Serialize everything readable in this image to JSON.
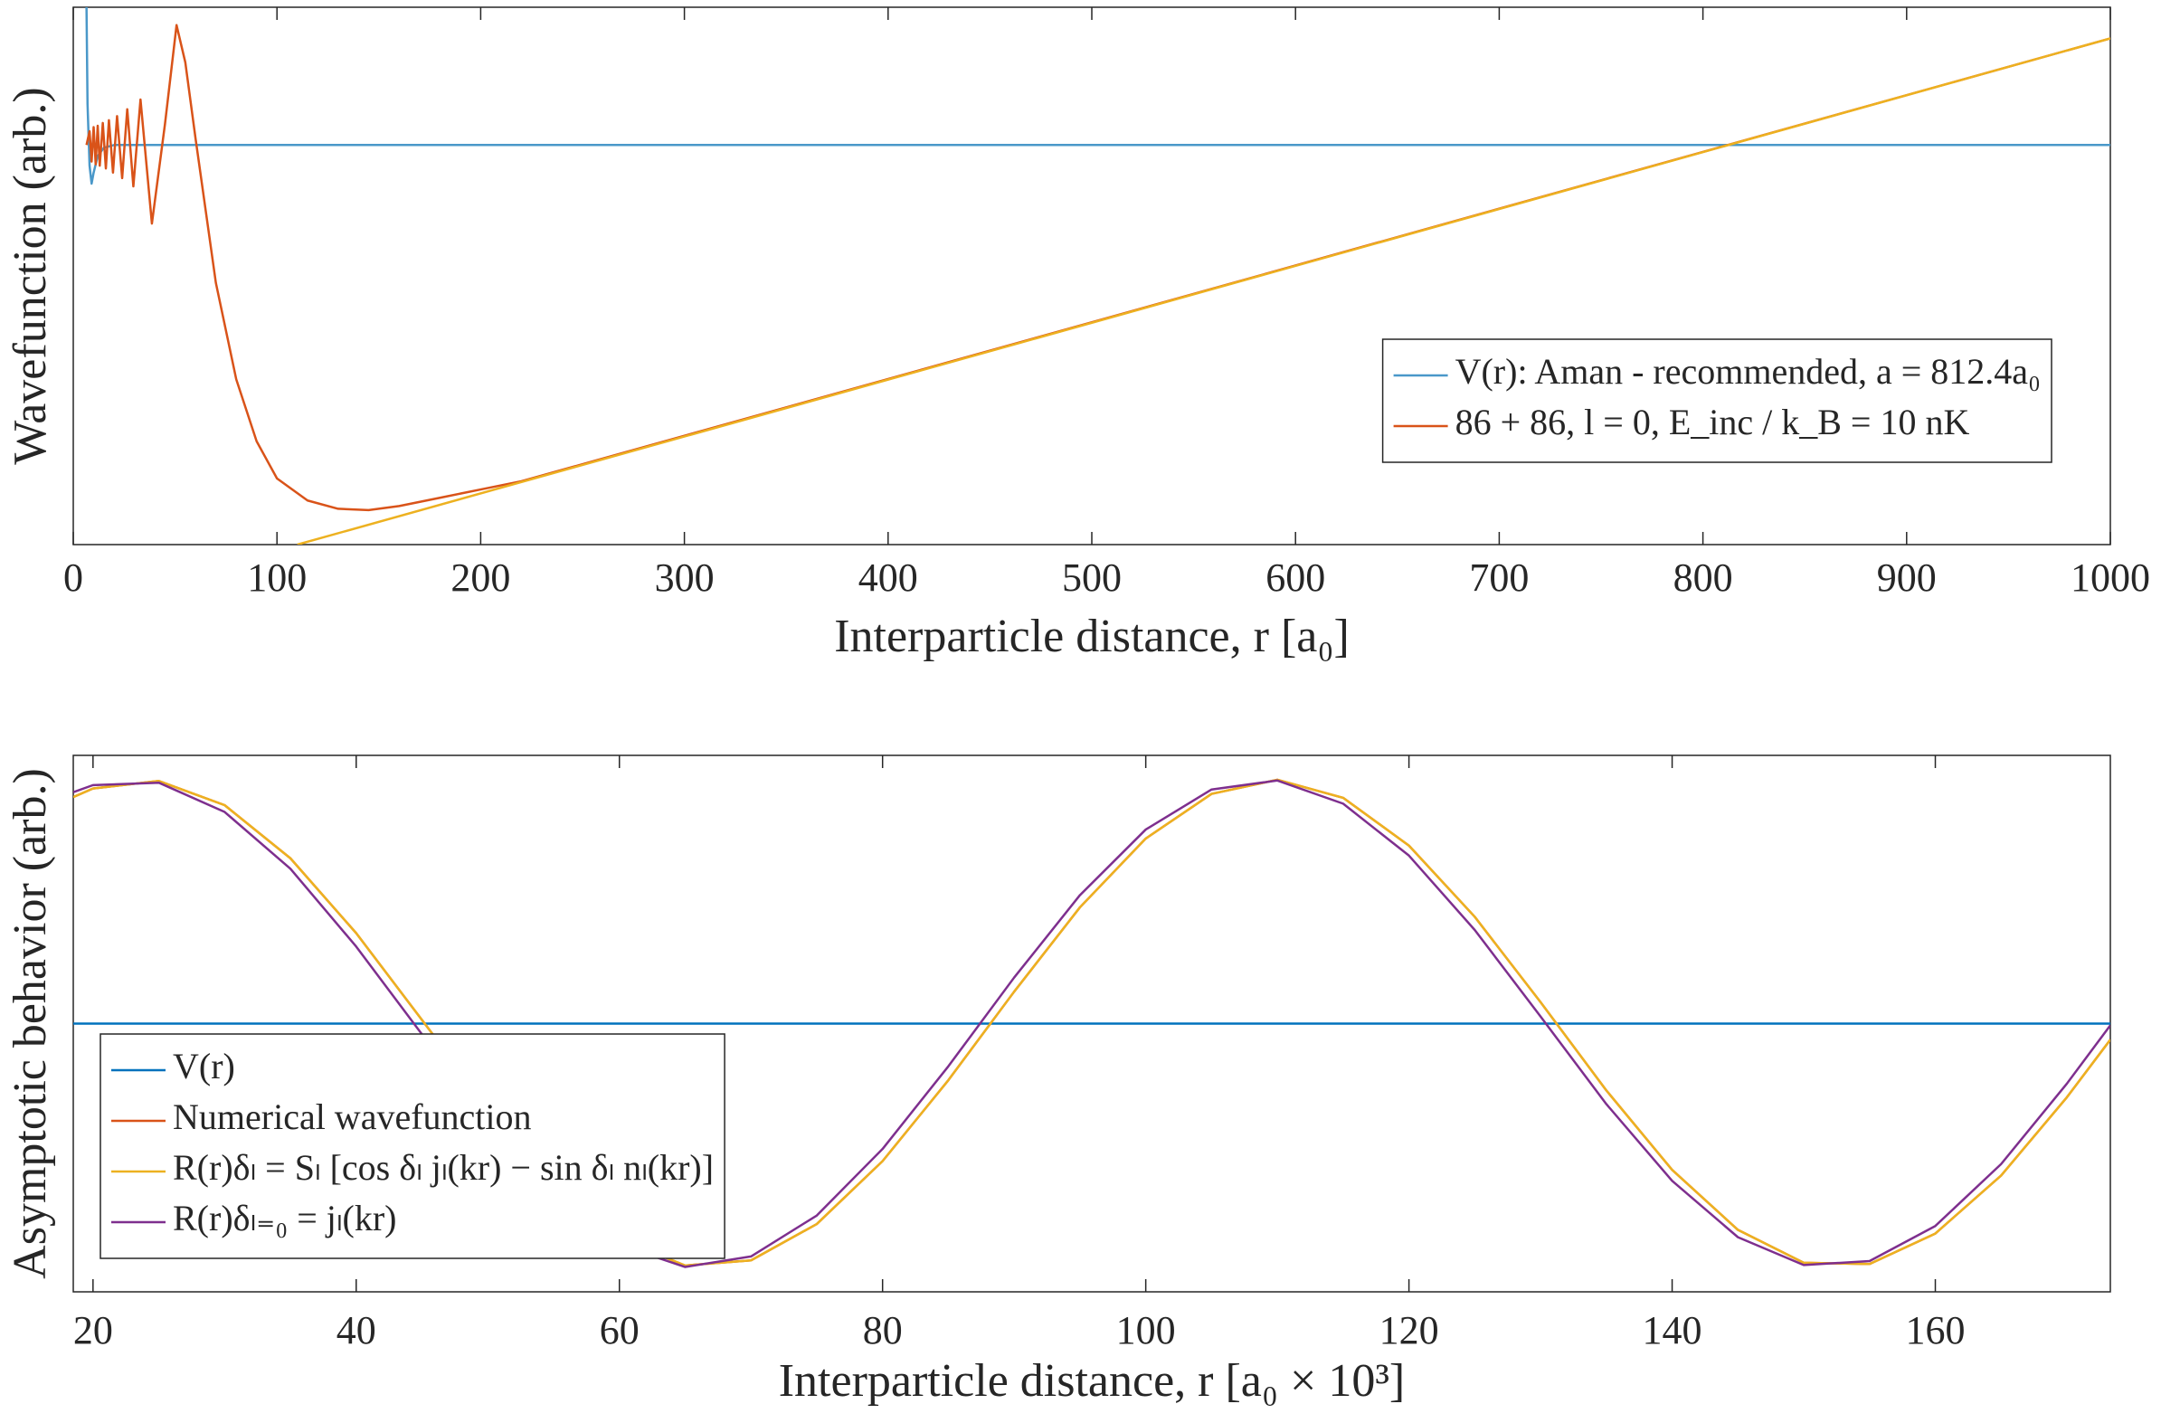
{
  "chart_data": [
    {
      "type": "line",
      "xlabel": "Interparticle distance, r [a₀]",
      "ylabel": "Wavefunction (arb.)",
      "xlim": [
        0,
        1000
      ],
      "xticks": [
        0,
        100,
        200,
        300,
        400,
        500,
        600,
        700,
        800,
        900,
        1000
      ],
      "ylim": [
        -2.9,
        1.0
      ],
      "grid": false,
      "legend_loc": "center right",
      "series": [
        {
          "name": "V(r): Aman - recommended, a = 812.4a₀",
          "color": "#4a98c9",
          "x": [
            6.5,
            7,
            8,
            9,
            10,
            12,
            15,
            20,
            1000
          ],
          "values": [
            1.0,
            0.3,
            -0.15,
            -0.28,
            -0.2,
            -0.08,
            -0.02,
            0,
            0
          ]
        },
        {
          "name": "86 + 86, l = 0, E_inc / k_B = 10 nK",
          "color": "#d95319",
          "x": [
            6.5,
            8,
            9,
            10,
            11,
            12,
            13,
            14.5,
            16,
            17.5,
            19.5,
            21.5,
            24,
            26.5,
            29.5,
            33,
            38.6,
            45,
            50.7,
            55,
            60,
            70,
            80,
            90,
            100,
            115,
            130,
            145,
            160,
            180,
            200,
            220,
            1000
          ],
          "values": [
            0,
            0.1,
            -0.12,
            0.13,
            -0.14,
            0.14,
            -0.15,
            0.16,
            -0.17,
            0.18,
            -0.2,
            0.21,
            -0.24,
            0.26,
            -0.3,
            0.33,
            -0.57,
            0.15,
            0.87,
            0.6,
            0.05,
            -1.0,
            -1.7,
            -2.15,
            -2.42,
            -2.58,
            -2.64,
            -2.65,
            -2.62,
            -2.56,
            -2.5,
            -2.44,
            0.774
          ]
        },
        {
          "color": "#edb120",
          "x": [
            110,
            1000
          ],
          "values": [
            -2.9,
            0.774
          ]
        }
      ]
    },
    {
      "type": "line",
      "xlabel": "Interparticle distance, r [a₀ × 10³]",
      "ylabel": "Asymptotic behavior (arb.)",
      "xlim": [
        18.5,
        173.3
      ],
      "xticks": [
        20,
        40,
        60,
        80,
        100,
        120,
        140,
        160
      ],
      "ylim": [
        -1.1,
        1.1
      ],
      "grid": false,
      "legend_loc": "lower left",
      "series": [
        {
          "name": "V(r)",
          "color": "#0072bd",
          "x": [
            18.5,
            173.3
          ],
          "values": [
            0,
            0
          ]
        },
        {
          "name": "Numerical wavefunction",
          "color": "#d95319",
          "x": [
            18.5,
            20,
            25,
            30,
            35,
            40,
            45,
            50,
            55,
            60,
            65,
            70,
            75,
            80,
            85,
            90,
            95,
            100,
            105,
            110,
            115,
            120,
            125,
            130,
            135,
            140,
            145,
            150,
            155,
            160,
            165,
            170,
            173.3
          ],
          "values": [
            0.929,
            0.964,
            0.995,
            0.896,
            0.678,
            0.371,
            0.015,
            -0.344,
            -0.656,
            -0.883,
            -0.992,
            -0.971,
            -0.822,
            -0.564,
            -0.232,
            0.131,
            0.477,
            0.759,
            0.942,
            1.0,
            0.926,
            0.73,
            0.438,
            0.088,
            -0.274,
            -0.6,
            -0.846,
            -0.981,
            -0.986,
            -0.861,
            -0.623,
            -0.302,
            -0.066
          ]
        },
        {
          "name": "R(r)δₗ = Sₗ [cos δₗ jₗ(kr) − sin δₗ nₗ(kr)]",
          "color": "#edb120",
          "x": [
            18.5,
            20,
            25,
            30,
            35,
            40,
            45,
            50,
            55,
            60,
            65,
            70,
            75,
            80,
            85,
            90,
            95,
            100,
            105,
            110,
            115,
            120,
            125,
            130,
            135,
            140,
            145,
            150,
            155,
            160,
            165,
            170,
            173.3
          ],
          "values": [
            0.929,
            0.964,
            0.995,
            0.896,
            0.678,
            0.371,
            0.015,
            -0.344,
            -0.656,
            -0.883,
            -0.992,
            -0.971,
            -0.822,
            -0.564,
            -0.232,
            0.131,
            0.477,
            0.759,
            0.942,
            1.0,
            0.926,
            0.73,
            0.438,
            0.088,
            -0.274,
            -0.6,
            -0.846,
            -0.981,
            -0.986,
            -0.861,
            -0.623,
            -0.302,
            -0.066
          ]
        },
        {
          "name": "R(r)δₗ₌₀ = jₗ(kr)",
          "color": "#7e2f8e",
          "x": [
            18.5,
            20,
            25,
            30,
            35,
            40,
            45,
            50,
            55,
            60,
            65,
            70,
            75,
            80,
            85,
            90,
            95,
            100,
            105,
            110,
            115,
            120,
            125,
            130,
            135,
            140,
            145,
            150,
            155,
            160,
            165,
            170,
            173.3
          ],
          "values": [
            0.949,
            0.978,
            0.988,
            0.868,
            0.635,
            0.316,
            -0.044,
            -0.398,
            -0.699,
            -0.908,
            -0.998,
            -0.955,
            -0.787,
            -0.514,
            -0.175,
            0.189,
            0.527,
            0.796,
            0.96,
            0.997,
            0.902,
            0.689,
            0.384,
            0.029,
            -0.33,
            -0.645,
            -0.876,
            -0.99,
            -0.974,
            -0.83,
            -0.576,
            -0.246,
            -0.007
          ]
        }
      ]
    }
  ]
}
